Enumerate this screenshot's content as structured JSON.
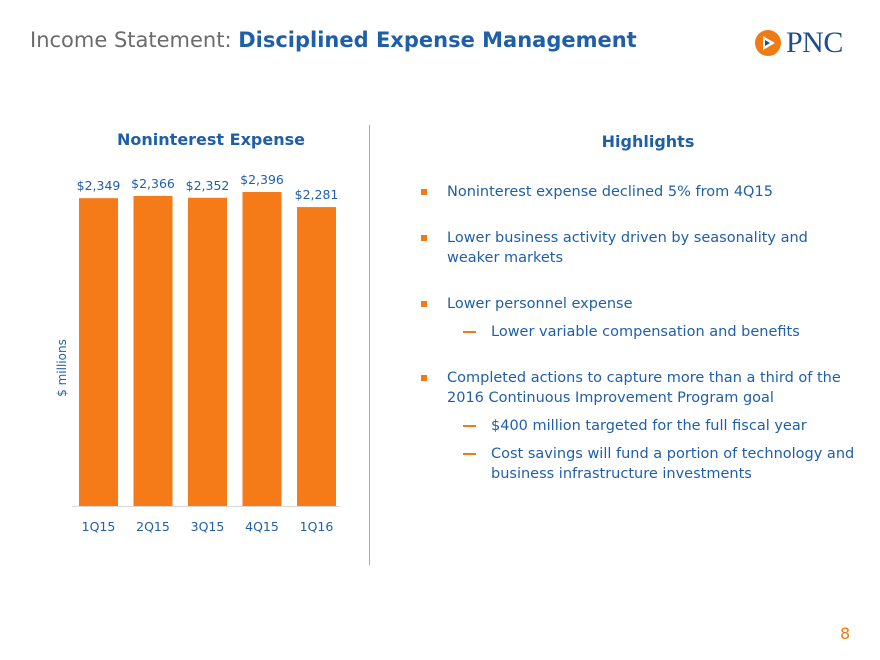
{
  "header": {
    "title_prefix": "Income Statement:",
    "title_main": "Disciplined Expense Management",
    "logo_text": "PNC",
    "logo_icon": "pnc-triangle-logo"
  },
  "chart_data": {
    "type": "bar",
    "title": "Noninterest Expense",
    "ylabel": "$ millions",
    "xlabel": "",
    "categories": [
      "1Q15",
      "2Q15",
      "3Q15",
      "4Q15",
      "1Q16"
    ],
    "values": [
      2349,
      2366,
      2352,
      2396,
      2281
    ],
    "data_labels": [
      "$2,349",
      "$2,366",
      "$2,352",
      "$2,396",
      "$2,281"
    ],
    "ylim": [
      0,
      2480
    ],
    "bar_color": "#f57a18",
    "grid": false
  },
  "highlights": {
    "title": "Highlights",
    "items": [
      {
        "text": "Noninterest expense declined 5% from 4Q15",
        "sub": []
      },
      {
        "text": "Lower business activity driven by seasonality and weaker markets",
        "sub": []
      },
      {
        "text": "Lower personnel expense",
        "sub": [
          "Lower variable compensation and benefits"
        ]
      },
      {
        "text": "Completed actions to capture more than a third of the 2016 Continuous Improvement Program goal",
        "sub": [
          "$400 million targeted for the full fiscal year",
          "Cost savings will fund a portion of technology and business infrastructure investments"
        ]
      }
    ]
  },
  "page_number": "8",
  "colors": {
    "accent": "#f07a14",
    "brand_blue": "#1f5fa8",
    "logo_blue": "#1f4e8c"
  }
}
